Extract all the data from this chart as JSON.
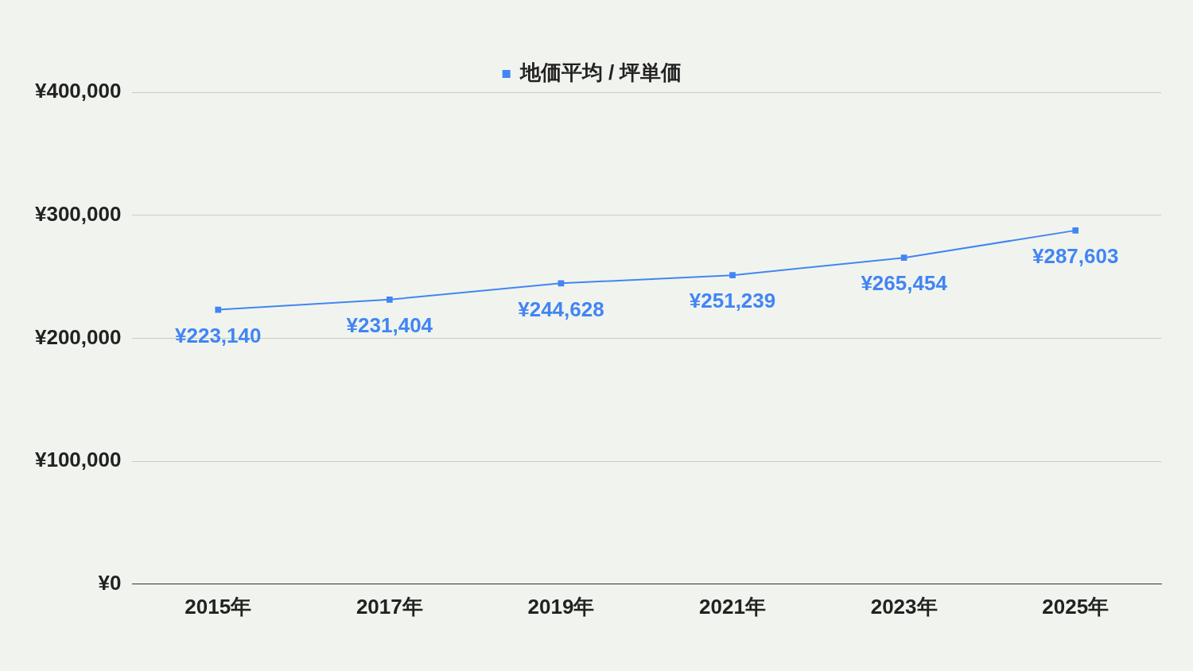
{
  "chart_data": {
    "type": "line",
    "categories": [
      "2015年",
      "2017年",
      "2019年",
      "2021年",
      "2023年",
      "2025年"
    ],
    "series": [
      {
        "name": "地価平均 / 坪単価",
        "color": "#4285f4",
        "values": [
          223140,
          231404,
          244628,
          251239,
          265454,
          287603
        ],
        "value_labels": [
          "¥223,140",
          "¥231,404",
          "¥244,628",
          "¥251,239",
          "¥265,454",
          "¥287,603"
        ]
      }
    ],
    "ylim": [
      0,
      400000
    ],
    "yticks": [
      {
        "value": 0,
        "label": "¥0"
      },
      {
        "value": 100000,
        "label": "¥100,000"
      },
      {
        "value": 200000,
        "label": "¥200,000"
      },
      {
        "value": 300000,
        "label": "¥300,000"
      },
      {
        "value": 400000,
        "label": "¥400,000"
      }
    ],
    "grid": "y",
    "legend": "top",
    "marker": "square",
    "line_style": "solid"
  }
}
